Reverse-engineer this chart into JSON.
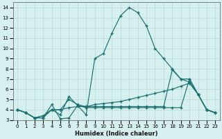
{
  "xlabel": "Humidex (Indice chaleur)",
  "xlim": [
    -0.5,
    23.5
  ],
  "ylim": [
    3,
    14.5
  ],
  "xticks": [
    0,
    1,
    2,
    3,
    4,
    5,
    6,
    7,
    8,
    9,
    10,
    11,
    12,
    13,
    14,
    15,
    16,
    17,
    18,
    19,
    20,
    21,
    22,
    23
  ],
  "yticks": [
    3,
    4,
    5,
    6,
    7,
    8,
    9,
    10,
    11,
    12,
    13,
    14
  ],
  "bg_color": "#d6f0ef",
  "grid_color": "#b8d8d6",
  "line_color": "#1a7070",
  "line1_x": [
    0,
    1,
    2,
    3,
    4,
    5,
    6,
    7,
    8,
    9,
    10,
    11,
    12,
    13,
    14,
    15,
    16,
    17,
    18,
    19,
    20,
    21,
    22,
    23
  ],
  "line1_y": [
    4.0,
    3.7,
    3.2,
    3.2,
    4.5,
    3.1,
    3.2,
    4.4,
    3.5,
    9.0,
    9.5,
    11.5,
    13.2,
    14.0,
    13.5,
    12.2,
    10.0,
    9.0,
    8.0,
    7.0,
    6.7,
    5.5,
    4.0,
    3.7
  ],
  "line2_x": [
    0,
    1,
    2,
    3,
    4,
    5,
    6,
    7,
    8,
    9,
    10,
    11,
    12,
    13,
    14,
    15,
    16,
    17,
    18,
    19,
    20,
    21,
    22,
    23
  ],
  "line2_y": [
    4.0,
    3.7,
    3.2,
    3.2,
    4.0,
    3.5,
    5.3,
    4.4,
    4.2,
    4.2,
    4.2,
    4.2,
    4.2,
    4.2,
    4.2,
    4.2,
    4.2,
    4.2,
    4.2,
    4.2,
    7.0,
    5.5,
    4.0,
    3.7
  ],
  "line3_x": [
    0,
    1,
    2,
    3,
    4,
    5,
    6,
    7,
    8,
    9,
    10,
    11,
    12,
    13,
    14,
    15,
    16,
    17,
    18,
    19,
    20,
    21,
    22,
    23
  ],
  "line3_y": [
    4.0,
    3.7,
    3.2,
    3.4,
    4.0,
    4.0,
    5.0,
    4.5,
    4.3,
    4.5,
    4.6,
    4.7,
    4.8,
    5.0,
    5.2,
    5.4,
    5.6,
    5.8,
    6.0,
    6.3,
    6.6,
    5.5,
    4.0,
    3.7
  ],
  "line4_x": [
    0,
    1,
    2,
    3,
    4,
    5,
    6,
    7,
    8,
    9,
    10,
    11,
    12,
    13,
    14,
    15,
    16,
    17,
    18,
    19,
    20,
    21,
    22,
    23
  ],
  "line4_y": [
    4.0,
    3.7,
    3.2,
    3.4,
    4.0,
    4.0,
    4.2,
    4.3,
    4.3,
    4.3,
    4.3,
    4.3,
    4.3,
    4.3,
    4.3,
    4.3,
    4.3,
    4.3,
    7.9,
    7.0,
    7.0,
    5.5,
    4.0,
    3.7
  ]
}
